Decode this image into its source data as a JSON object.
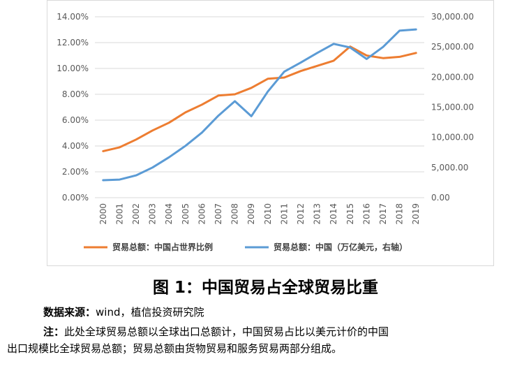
{
  "chart_data": {
    "type": "line",
    "x": [
      "2000",
      "2001",
      "2002",
      "2003",
      "2004",
      "2005",
      "2006",
      "2007",
      "2008",
      "2009",
      "2010",
      "2011",
      "2012",
      "2013",
      "2014",
      "2015",
      "2016",
      "2017",
      "2018",
      "2019"
    ],
    "y_left": {
      "min": 0,
      "max": 0.14,
      "ticks": [
        "0.00%",
        "2.00%",
        "4.00%",
        "6.00%",
        "8.00%",
        "10.00%",
        "12.00%",
        "14.00%"
      ]
    },
    "y_right": {
      "min": 0,
      "max": 30000,
      "ticks": [
        "0.00",
        "5,000.00",
        "10,000.00",
        "15,000.00",
        "20,000.00",
        "25,000.00",
        "30,000.00"
      ]
    },
    "grid": "horizontal",
    "legend_position": "bottom",
    "series": [
      {
        "name": "贸易总额：中国占世界比例",
        "axis": "left",
        "color": "#ED7D31",
        "values": [
          0.036,
          0.039,
          0.045,
          0.052,
          0.058,
          0.066,
          0.072,
          0.079,
          0.08,
          0.085,
          0.092,
          0.093,
          0.098,
          0.102,
          0.106,
          0.117,
          0.11,
          0.108,
          0.109,
          0.112
        ]
      },
      {
        "name": "贸易总额：中国（万亿美元，右轴）",
        "axis": "right",
        "color": "#5B9BD5",
        "values": [
          2900,
          3000,
          3700,
          5000,
          6700,
          8600,
          10800,
          13600,
          16000,
          13500,
          17600,
          20900,
          22400,
          24000,
          25500,
          24900,
          23000,
          25000,
          27700,
          27900
        ]
      }
    ]
  },
  "figure": {
    "title": "图 1：中国贸易占全球贸易比重",
    "source_label": "数据来源：",
    "source_text": "wind，植信投资研究院",
    "note_label": "注：",
    "note_line1": "此处全球贸易总额以全球出口总额计，中国贸易占比以美元计价的中国",
    "note_line2": "出口规模比全球贸易总额；贸易总额由货物贸易和服务贸易两部分组成。"
  }
}
